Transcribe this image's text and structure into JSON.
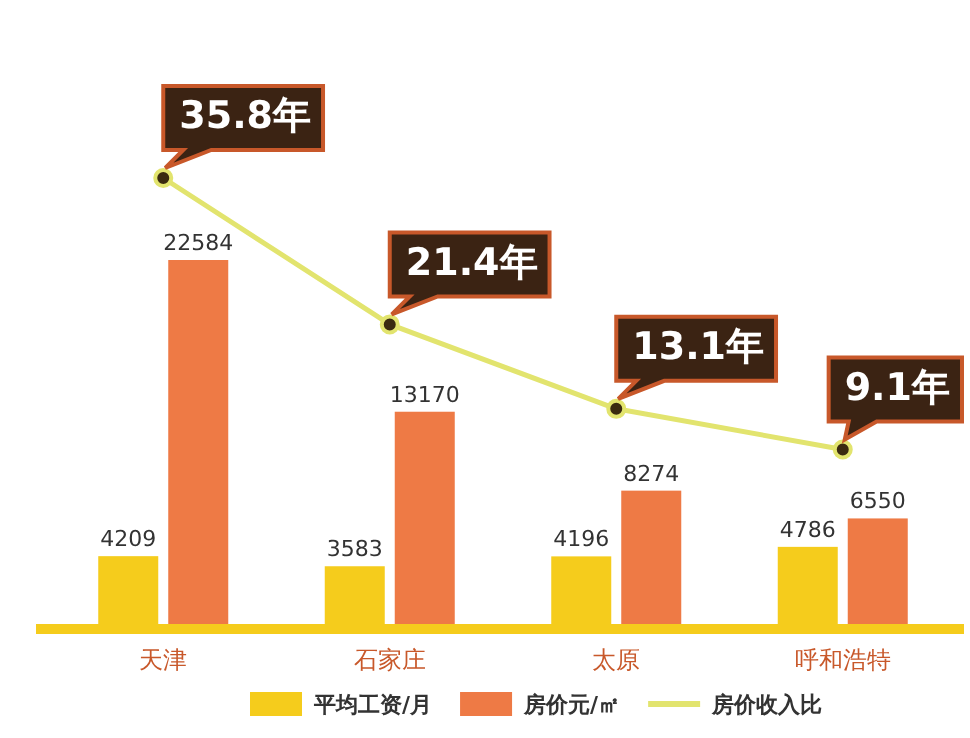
{
  "chart_data": {
    "type": "bar",
    "categories": [
      "天津",
      "石家庄",
      "太原",
      "呼和浩特"
    ],
    "series": [
      {
        "name": "平均工资/月",
        "color": "#f5cc1c",
        "values": [
          4209,
          3583,
          4196,
          4786
        ]
      },
      {
        "name": "房价元/㎡",
        "color": "#ee7a45",
        "values": [
          22584,
          13170,
          8274,
          6550
        ]
      },
      {
        "name": "房价收入比",
        "type": "line",
        "axis": "y2",
        "color": "#e2e46e",
        "marker": "circle",
        "values": [
          35.8,
          21.4,
          13.1,
          9.1
        ],
        "value_labels": [
          "35.8年",
          "21.4年",
          "13.1年",
          "9.1年"
        ]
      }
    ],
    "data_labels": true,
    "legend": "bottom"
  }
}
